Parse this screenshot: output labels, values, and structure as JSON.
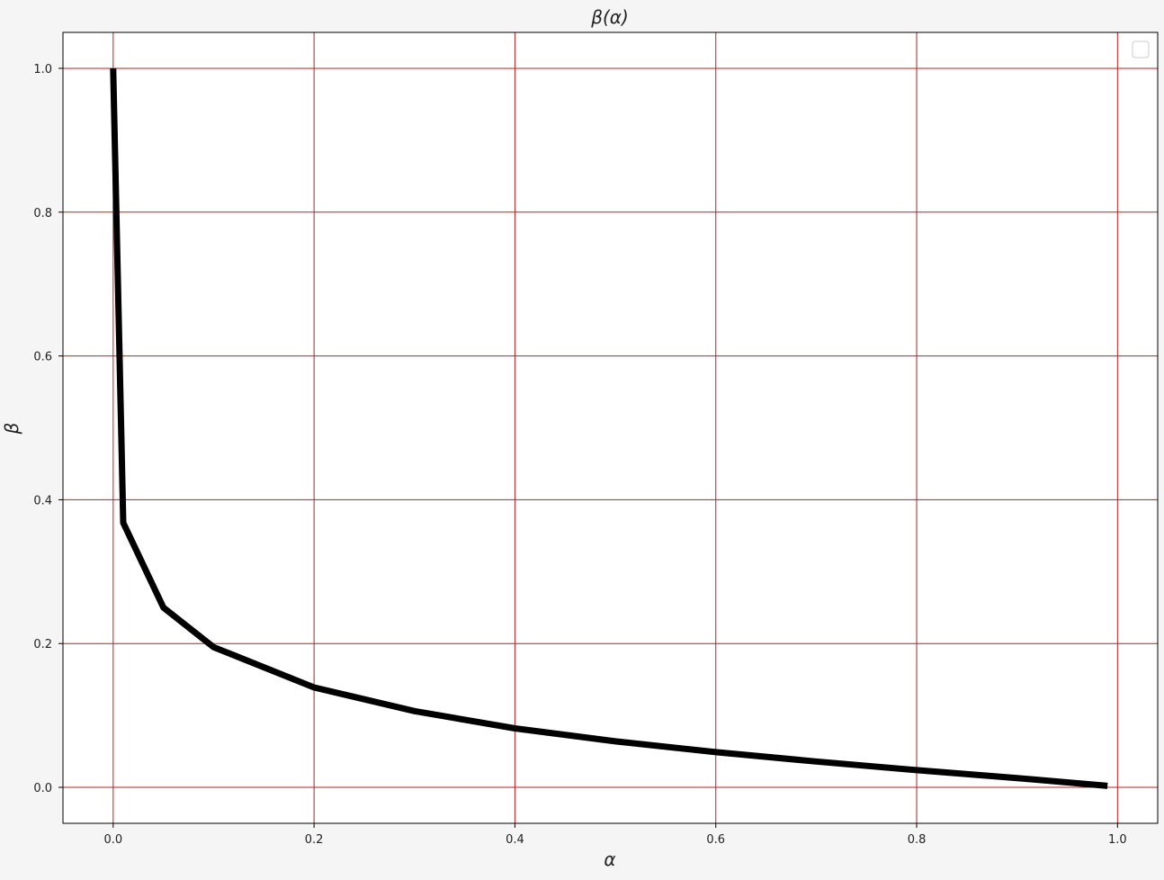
{
  "chart_data": {
    "type": "line",
    "title": "β(α)",
    "xlabel": "α",
    "ylabel": "β",
    "xlim": [
      -0.05,
      1.04
    ],
    "ylim": [
      -0.05,
      1.05
    ],
    "xticks": [
      0.0,
      0.2,
      0.4,
      0.6,
      0.8,
      1.0
    ],
    "xtick_labels": [
      "0.0",
      "0.2",
      "0.4",
      "0.6",
      "0.8",
      "1.0"
    ],
    "yticks": [
      0.0,
      0.2,
      0.4,
      0.6,
      0.8,
      1.0
    ],
    "ytick_labels": [
      "0.0",
      "0.2",
      "0.4",
      "0.6",
      "0.8",
      "1.0"
    ],
    "grid": true,
    "grid_color": "#b22222",
    "legend": "top-right (empty)",
    "series": [
      {
        "color": "#000000",
        "x": [
          0.0,
          0.01,
          0.05,
          0.1,
          0.2,
          0.3,
          0.4,
          0.5,
          0.6,
          0.7,
          0.8,
          0.9,
          0.99
        ],
        "y": [
          1.0,
          0.368,
          0.25,
          0.195,
          0.139,
          0.106,
          0.082,
          0.064,
          0.049,
          0.036,
          0.024,
          0.013,
          0.002
        ]
      }
    ]
  }
}
